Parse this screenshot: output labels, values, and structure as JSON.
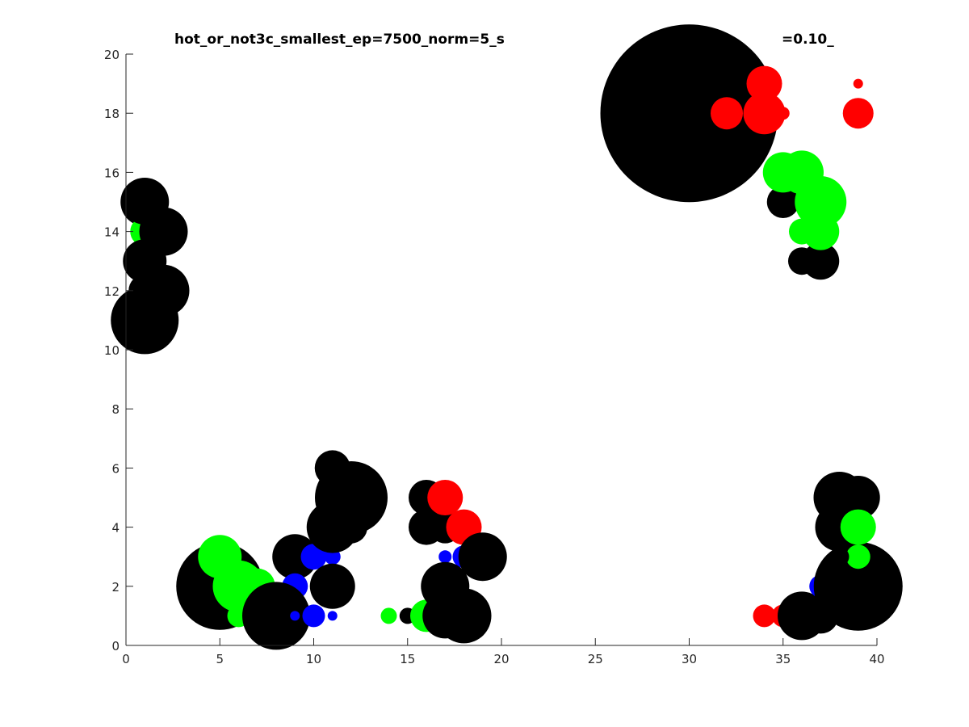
{
  "chart_data": {
    "type": "scatter",
    "title": "hot_or_not3c_smallest_ep=7500_norm=5_s",
    "title_tail": "=0.10_",
    "xlabel": "",
    "ylabel": "",
    "xlim": [
      0,
      40
    ],
    "ylim": [
      0,
      20
    ],
    "xticks": [
      0,
      5,
      10,
      15,
      20,
      25,
      30,
      35,
      40
    ],
    "yticks": [
      0,
      2,
      4,
      6,
      8,
      10,
      12,
      14,
      16,
      18,
      20
    ],
    "grid": false,
    "legend": "none",
    "colors": {
      "black": "#000000",
      "green": "#00ff00",
      "blue": "#0000ff",
      "red": "#ff0000"
    },
    "points": [
      {
        "x": 30,
        "y": 18,
        "r": 110,
        "color": "black"
      },
      {
        "x": 32,
        "y": 18,
        "r": 20,
        "color": "red"
      },
      {
        "x": 34,
        "y": 19,
        "r": 22,
        "color": "red"
      },
      {
        "x": 34,
        "y": 18,
        "r": 26,
        "color": "red"
      },
      {
        "x": 35,
        "y": 18,
        "r": 8,
        "color": "red"
      },
      {
        "x": 39,
        "y": 19,
        "r": 6,
        "color": "red"
      },
      {
        "x": 39,
        "y": 18,
        "r": 19,
        "color": "red"
      },
      {
        "x": 35,
        "y": 15,
        "r": 20,
        "color": "black"
      },
      {
        "x": 36,
        "y": 13,
        "r": 17,
        "color": "black"
      },
      {
        "x": 37,
        "y": 13,
        "r": 23,
        "color": "black"
      },
      {
        "x": 35,
        "y": 16,
        "r": 25,
        "color": "green"
      },
      {
        "x": 36,
        "y": 16,
        "r": 27,
        "color": "green"
      },
      {
        "x": 37,
        "y": 15,
        "r": 32,
        "color": "green"
      },
      {
        "x": 36,
        "y": 14,
        "r": 16,
        "color": "green"
      },
      {
        "x": 37,
        "y": 14,
        "r": 23,
        "color": "green"
      },
      {
        "x": 1,
        "y": 15,
        "r": 30,
        "color": "black"
      },
      {
        "x": 1,
        "y": 14,
        "r": 18,
        "color": "green"
      },
      {
        "x": 1,
        "y": 15,
        "r": 28,
        "color": "black"
      },
      {
        "x": 2,
        "y": 14,
        "r": 30,
        "color": "black"
      },
      {
        "x": 1,
        "y": 13,
        "r": 27,
        "color": "black"
      },
      {
        "x": 2,
        "y": 12,
        "r": 32,
        "color": "black"
      },
      {
        "x": 1,
        "y": 12,
        "r": 20,
        "color": "black"
      },
      {
        "x": 1,
        "y": 11,
        "r": 42,
        "color": "black"
      },
      {
        "x": 5,
        "y": 2,
        "r": 54,
        "color": "black"
      },
      {
        "x": 5,
        "y": 3,
        "r": 27,
        "color": "green"
      },
      {
        "x": 6,
        "y": 2,
        "r": 32,
        "color": "green"
      },
      {
        "x": 7,
        "y": 2,
        "r": 22,
        "color": "green"
      },
      {
        "x": 6,
        "y": 1,
        "r": 14,
        "color": "green"
      },
      {
        "x": 9,
        "y": 3,
        "r": 28,
        "color": "black"
      },
      {
        "x": 9,
        "y": 2,
        "r": 16,
        "color": "blue"
      },
      {
        "x": 8,
        "y": 1,
        "r": 42,
        "color": "black"
      },
      {
        "x": 9,
        "y": 1,
        "r": 6,
        "color": "blue"
      },
      {
        "x": 10,
        "y": 1,
        "r": 14,
        "color": "blue"
      },
      {
        "x": 11,
        "y": 1,
        "r": 6,
        "color": "blue"
      },
      {
        "x": 10,
        "y": 3,
        "r": 16,
        "color": "blue"
      },
      {
        "x": 11,
        "y": 3,
        "r": 10,
        "color": "blue"
      },
      {
        "x": 11,
        "y": 2,
        "r": 28,
        "color": "black"
      },
      {
        "x": 11,
        "y": 6,
        "r": 22,
        "color": "black"
      },
      {
        "x": 12,
        "y": 5,
        "r": 45,
        "color": "black"
      },
      {
        "x": 11,
        "y": 5,
        "r": 20,
        "color": "black"
      },
      {
        "x": 11,
        "y": 4,
        "r": 32,
        "color": "black"
      },
      {
        "x": 12,
        "y": 4,
        "r": 20,
        "color": "black"
      },
      {
        "x": 14,
        "y": 1,
        "r": 10,
        "color": "green"
      },
      {
        "x": 15,
        "y": 1,
        "r": 10,
        "color": "black"
      },
      {
        "x": 16,
        "y": 1,
        "r": 20,
        "color": "green"
      },
      {
        "x": 16,
        "y": 5,
        "r": 22,
        "color": "black"
      },
      {
        "x": 16,
        "y": 4,
        "r": 22,
        "color": "black"
      },
      {
        "x": 17,
        "y": 4,
        "r": 20,
        "color": "black"
      },
      {
        "x": 17,
        "y": 5,
        "r": 22,
        "color": "red"
      },
      {
        "x": 18,
        "y": 4,
        "r": 22,
        "color": "red"
      },
      {
        "x": 17,
        "y": 3,
        "r": 8,
        "color": "blue"
      },
      {
        "x": 18,
        "y": 3,
        "r": 14,
        "color": "blue"
      },
      {
        "x": 19,
        "y": 3,
        "r": 30,
        "color": "black"
      },
      {
        "x": 17,
        "y": 2,
        "r": 30,
        "color": "black"
      },
      {
        "x": 17,
        "y": 1,
        "r": 28,
        "color": "black"
      },
      {
        "x": 18,
        "y": 1,
        "r": 34,
        "color": "black"
      },
      {
        "x": 34,
        "y": 1,
        "r": 14,
        "color": "red"
      },
      {
        "x": 35,
        "y": 1,
        "r": 14,
        "color": "red"
      },
      {
        "x": 36,
        "y": 1,
        "r": 30,
        "color": "black"
      },
      {
        "x": 37,
        "y": 1,
        "r": 22,
        "color": "black"
      },
      {
        "x": 37,
        "y": 2,
        "r": 14,
        "color": "blue"
      },
      {
        "x": 38,
        "y": 2,
        "r": 20,
        "color": "blue"
      },
      {
        "x": 39,
        "y": 2,
        "r": 55,
        "color": "black"
      },
      {
        "x": 38,
        "y": 5,
        "r": 32,
        "color": "black"
      },
      {
        "x": 39,
        "y": 5,
        "r": 27,
        "color": "black"
      },
      {
        "x": 38,
        "y": 4,
        "r": 30,
        "color": "black"
      },
      {
        "x": 39,
        "y": 4,
        "r": 22,
        "color": "green"
      },
      {
        "x": 39,
        "y": 3,
        "r": 15,
        "color": "green"
      },
      {
        "x": 38,
        "y": 3,
        "r": 12,
        "color": "black"
      }
    ]
  }
}
